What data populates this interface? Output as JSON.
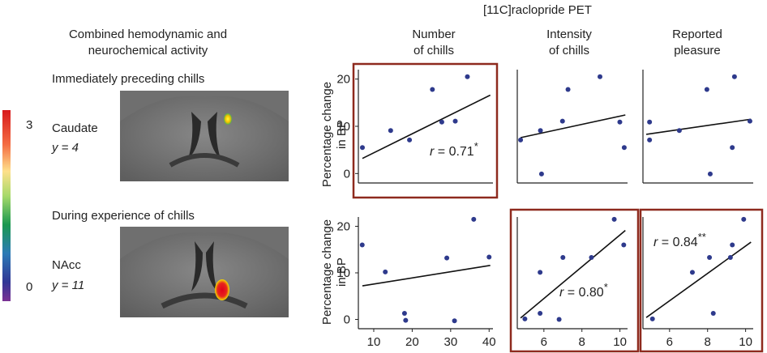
{
  "figure": {
    "left_panel": {
      "title_line1": "Combined hemodynamic and",
      "title_line2": "neurochemical activity",
      "top_label": "Immediately preceding chills",
      "bottom_label": "During experience of chills",
      "top_region": "Caudate",
      "top_coord": "y = 4",
      "bottom_region": "NAcc",
      "bottom_coord": "y = 11",
      "colorbar_max": "3",
      "colorbar_min": "0"
    },
    "right_panel": {
      "title": "[11C]raclopride PET",
      "col1_line1": "Number",
      "col1_line2": "of chills",
      "col2_line1": "Intensity",
      "col2_line2": "of chills",
      "col3_line1": "Reported",
      "col3_line2": "pleasure",
      "ylabel_line1": "Percentage change",
      "ylabel_line2": "in BP"
    },
    "highlight_color": "#8e2a1e",
    "point_color": "#2e3a8c"
  },
  "chart_data": [
    {
      "type": "scatter",
      "ylabel": "Percentage change in BP",
      "yticks": [
        "0",
        "10",
        "20"
      ],
      "ylim": [
        -2,
        22
      ],
      "xlim": [
        0,
        10
      ],
      "x": [
        0.3,
        2.4,
        3.8,
        5.5,
        6.2,
        7.2,
        8.1
      ],
      "y": [
        5.5,
        9.1,
        7.1,
        17.8,
        10.9,
        11.1,
        20.5
      ],
      "fit": [
        3.2,
        16.6
      ],
      "annotation": "r = 0.71",
      "significance": "*",
      "highlighted": true
    },
    {
      "type": "scatter",
      "ylim": [
        -2,
        22
      ],
      "xlim": [
        0,
        10
      ],
      "x": [
        0.3,
        2.1,
        4.1,
        7.5,
        9.3,
        9.7
      ],
      "y": [
        7.1,
        9.1,
        11.1,
        20.5,
        10.9,
        5.5
      ],
      "extra_points": [
        [
          2.2,
          -0.1
        ],
        [
          4.6,
          17.8
        ]
      ],
      "fit": [
        7.6,
        12.4
      ],
      "highlighted": false
    },
    {
      "type": "scatter",
      "ylim": [
        -2,
        22
      ],
      "xlim": [
        0,
        10
      ],
      "x": [
        0.6,
        0.6,
        3.3,
        5.8,
        6.1,
        8.1,
        8.3,
        9.7
      ],
      "y": [
        10.9,
        7.1,
        9.1,
        17.8,
        -0.1,
        5.5,
        20.5,
        11.1
      ],
      "fit": [
        8.3,
        11.5
      ],
      "highlighted": false
    },
    {
      "type": "scatter",
      "ylabel": "Percentage change in BP",
      "yticks": [
        "0",
        "10",
        "20"
      ],
      "xticks": [
        "10",
        "20",
        "30",
        "40"
      ],
      "xlim": [
        6,
        41
      ],
      "ylim": [
        -2,
        22
      ],
      "x": [
        7,
        13,
        18,
        18.3,
        29,
        31,
        36,
        40
      ],
      "y": [
        16,
        10.2,
        1.3,
        -0.2,
        13.2,
        -0.3,
        21.5,
        13.4
      ],
      "fit": [
        7.2,
        11.6
      ],
      "highlighted": false
    },
    {
      "type": "scatter",
      "xticks": [
        "6",
        "8",
        "10"
      ],
      "xlim": [
        4.6,
        10.4
      ],
      "ylim": [
        -2,
        22
      ],
      "x": [
        5.0,
        5.8,
        5.8,
        6.8,
        7.0,
        8.5,
        9.7,
        10.2
      ],
      "y": [
        0.1,
        10.1,
        1.3,
        0.0,
        13.3,
        13.3,
        21.5,
        16.0
      ],
      "fit": [
        0.3,
        19.1
      ],
      "annotation": "r = 0.80",
      "significance": "*",
      "highlighted": true
    },
    {
      "type": "scatter",
      "xticks": [
        "6",
        "8",
        "10"
      ],
      "xlim": [
        4.6,
        10.4
      ],
      "ylim": [
        -2,
        22
      ],
      "x": [
        5.1,
        7.2,
        8.1,
        8.3,
        9.2,
        9.3,
        9.9
      ],
      "y": [
        0.1,
        10.1,
        13.3,
        1.3,
        13.3,
        16.0,
        21.5
      ],
      "fit": [
        0.4,
        16.6
      ],
      "annotation": "r = 0.84",
      "significance": "**",
      "highlighted": true
    }
  ]
}
